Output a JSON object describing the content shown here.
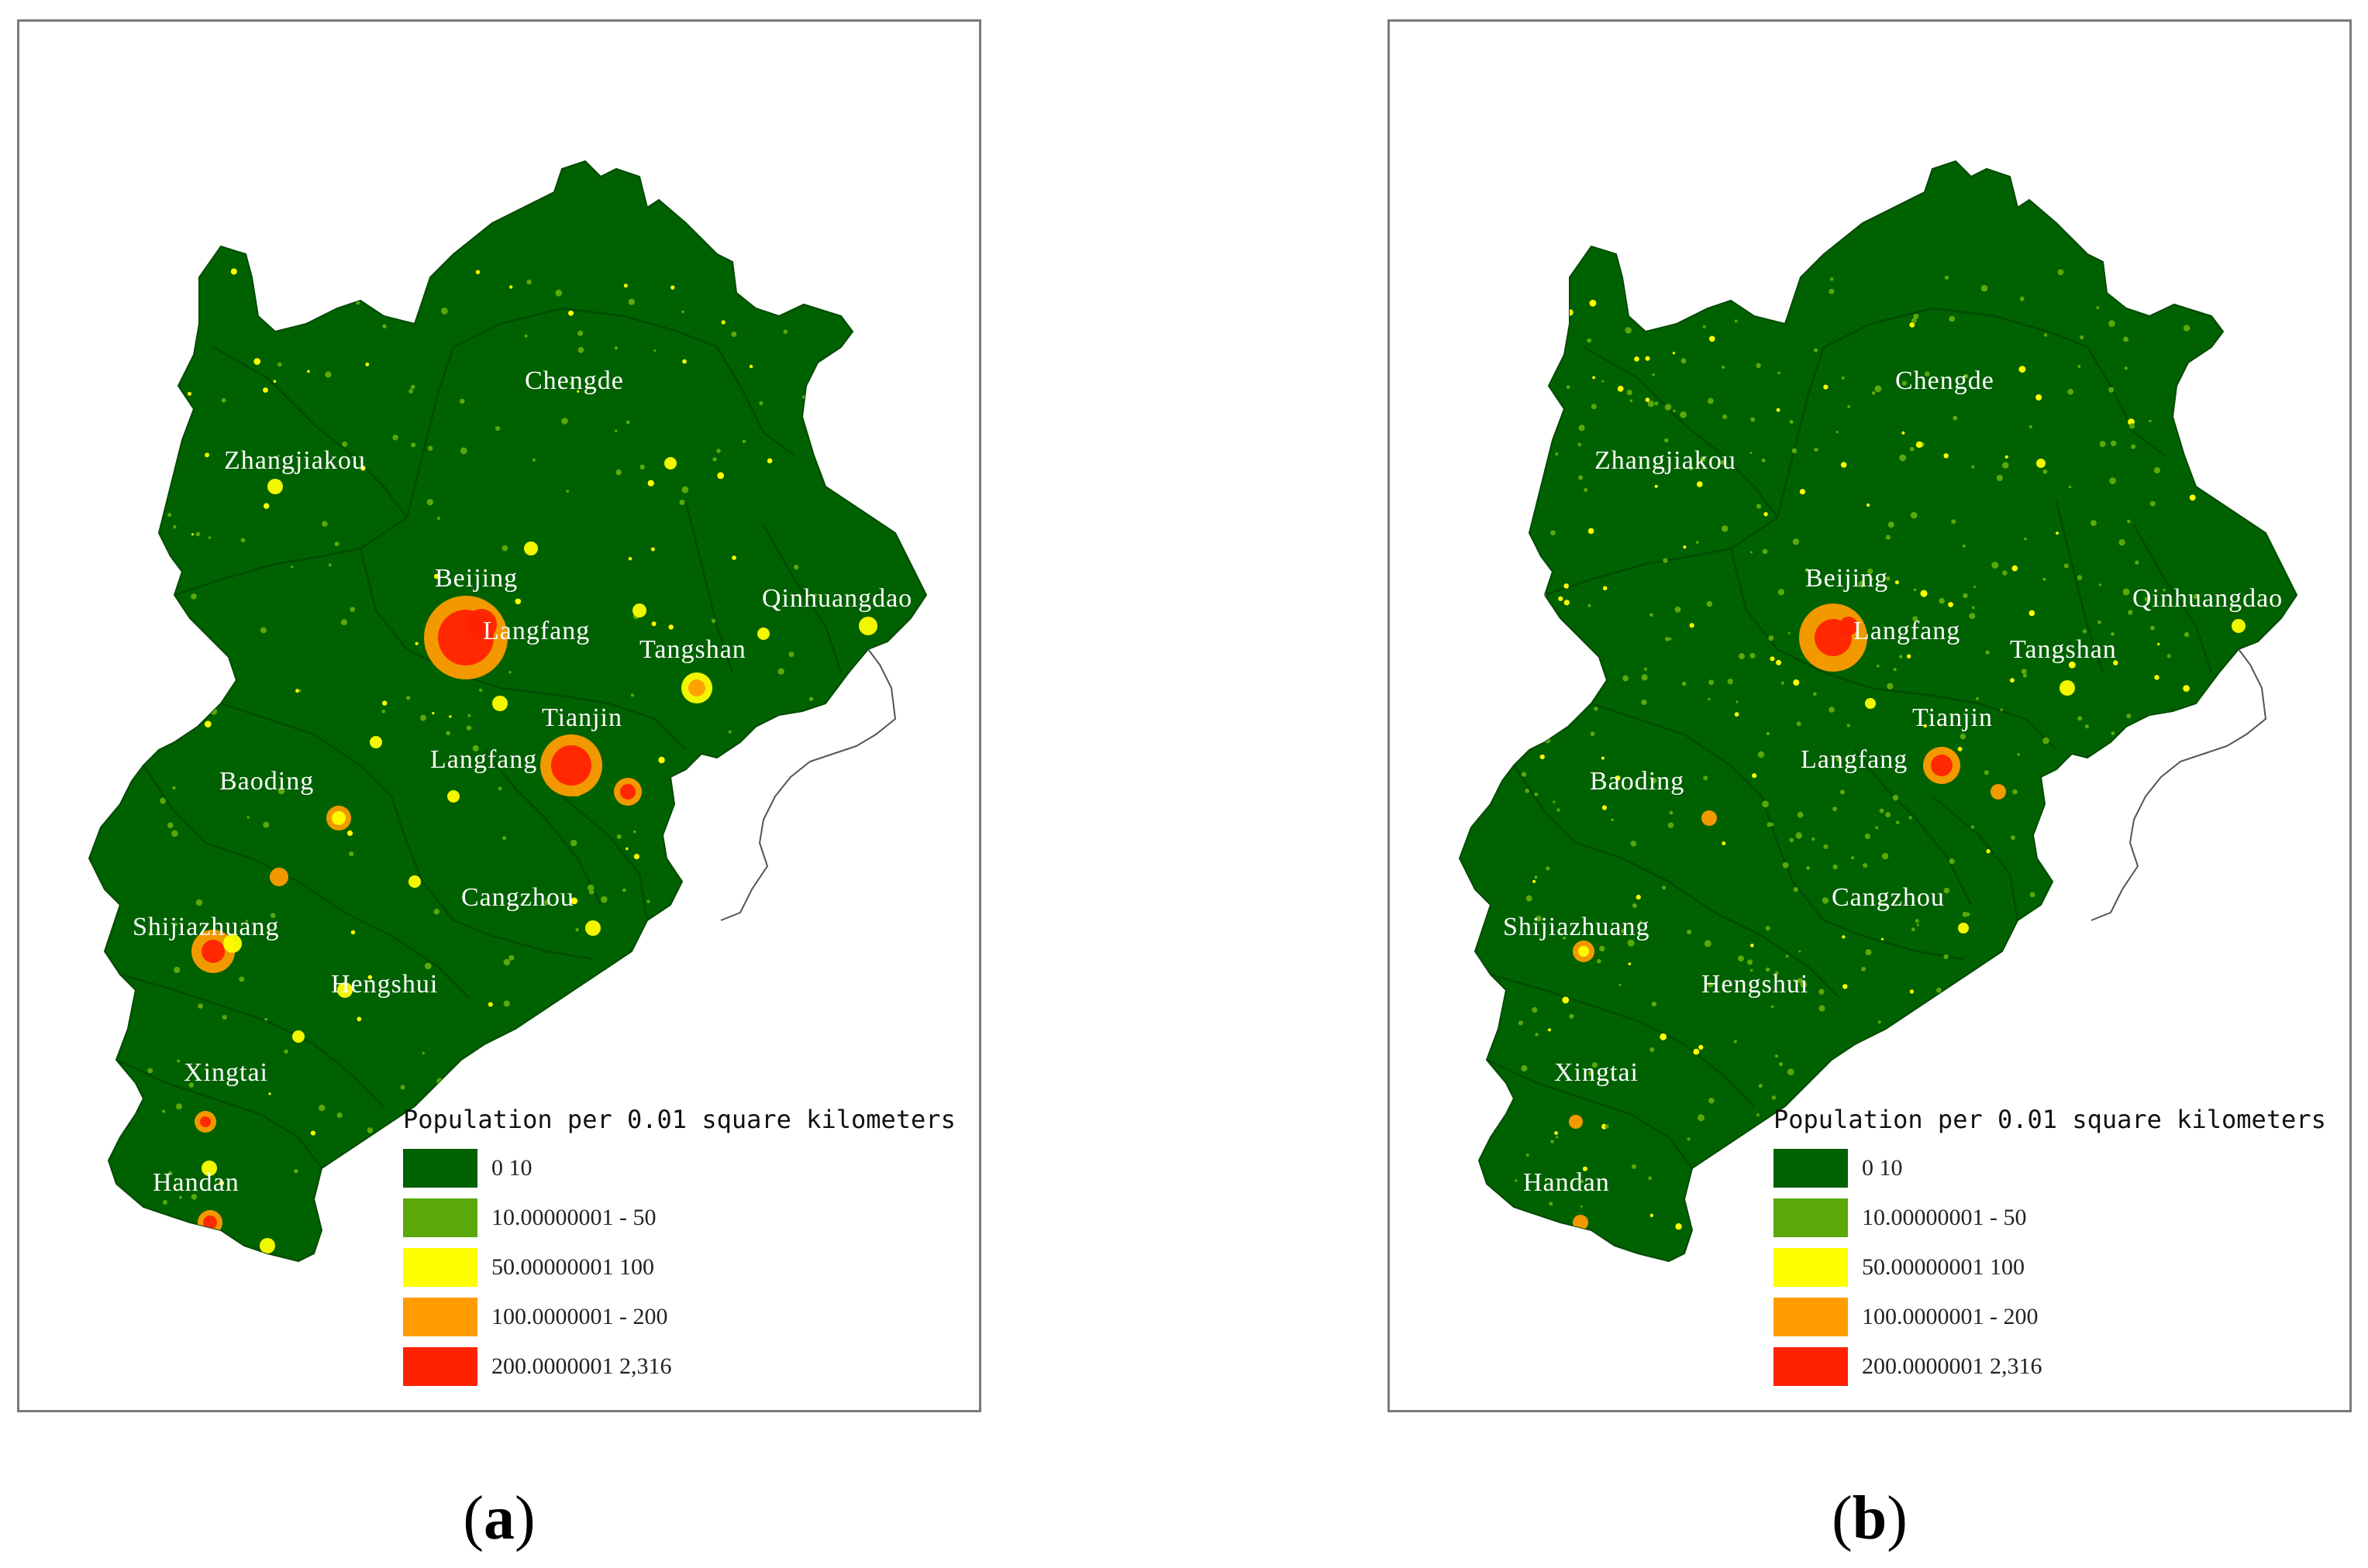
{
  "panels": [
    {
      "id": "a",
      "caption": {
        "open": "(",
        "letter": "a",
        "close": ")"
      },
      "cities": [
        "Chengde",
        "Zhangjiakou",
        "Beijing",
        "Qinhuangdao",
        "Langfang",
        "Tangshan",
        "Tianjin",
        "Langfang",
        "Baoding",
        "Cangzhou",
        "Shijiazhuang",
        "Hengshui",
        "Xingtai",
        "Handan"
      ]
    },
    {
      "id": "b",
      "caption": {
        "open": "(",
        "letter": "b",
        "close": ")"
      },
      "cities": [
        "Chengde",
        "Zhangjiakou",
        "Beijing",
        "Qinhuangdao",
        "Langfang",
        "Tangshan",
        "Tianjin",
        "Langfang",
        "Baoding",
        "Cangzhou",
        "Shijiazhuang",
        "Hengshui",
        "Xingtai",
        "Handan"
      ]
    }
  ],
  "legend": {
    "title": "Population per 0.01 square kilometers",
    "items": [
      {
        "label": "0   10",
        "color": "#006100"
      },
      {
        "label": "10.00000001 - 50",
        "color": "#5aa80a"
      },
      {
        "label": "50.00000001   100",
        "color": "#ffff00"
      },
      {
        "label": "100.0000001 - 200",
        "color": "#ff9c00"
      },
      {
        "label": "200.0000001   2,316",
        "color": "#ff2200"
      }
    ]
  },
  "map_colors": {
    "land": "#006100",
    "boundary": "#004a00",
    "coast": "#555555",
    "low": "#5aa80a",
    "medium": "#ffff00",
    "high": "#ff9c00",
    "highest": "#ff2200"
  }
}
